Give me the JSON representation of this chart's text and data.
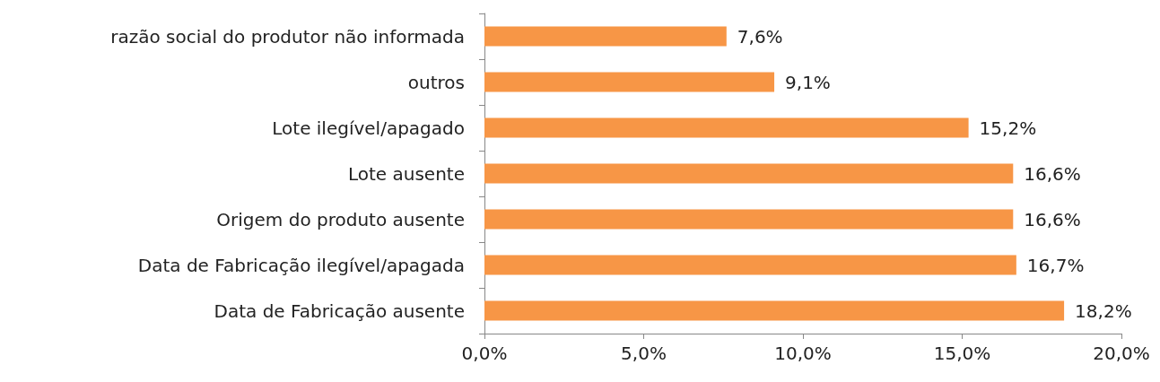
{
  "chart_data": {
    "type": "bar",
    "orientation": "horizontal",
    "categories": [
      "razão social do produtor não informada",
      "outros",
      "Lote ilegível/apagado",
      "Lote ausente",
      "Origem do produto ausente",
      "Data de Fabricação ilegível/apagada",
      "Data de Fabricação ausente"
    ],
    "values": [
      7.6,
      9.1,
      15.2,
      16.6,
      16.6,
      16.7,
      18.2
    ],
    "value_labels": [
      "7,6%",
      "9,1%",
      "15,2%",
      "16,6%",
      "16,6%",
      "16,7%",
      "18,2%"
    ],
    "color": "#f79646",
    "xlim": [
      0,
      20
    ],
    "xticks": [
      {
        "value": 0,
        "label": "0,0%"
      },
      {
        "value": 5,
        "label": "5,0%"
      },
      {
        "value": 10,
        "label": "10,0%"
      },
      {
        "value": 15,
        "label": "15,0%"
      },
      {
        "value": 20,
        "label": "20,0%"
      }
    ]
  }
}
